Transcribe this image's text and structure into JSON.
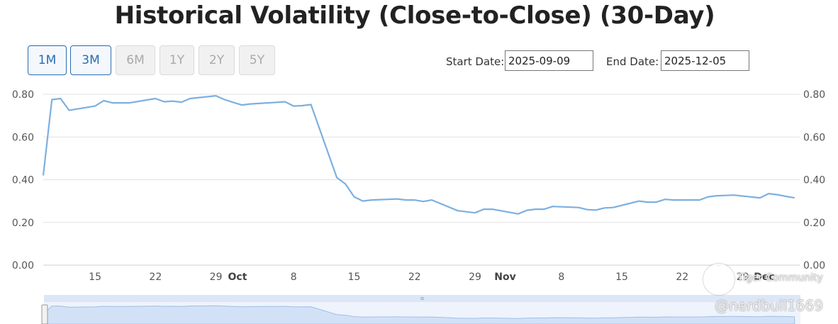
{
  "title": "Historical Volatility (Close-to-Close) (30-Day)",
  "range_buttons": [
    {
      "label": "1M",
      "state": "active"
    },
    {
      "label": "3M",
      "state": "active"
    },
    {
      "label": "6M",
      "state": "disabled"
    },
    {
      "label": "1Y",
      "state": "disabled"
    },
    {
      "label": "2Y",
      "state": "disabled"
    },
    {
      "label": "5Y",
      "state": "disabled"
    }
  ],
  "start_date": {
    "label": "Start Date:",
    "value": "2025-09-09"
  },
  "end_date": {
    "label": "End Date:",
    "value": "2025-12-05"
  },
  "watermark": {
    "brand": "Tiger Community",
    "handle": "@nerdbull1669"
  },
  "colors": {
    "line": "#7cb0e0",
    "grid": "#e2e2e2",
    "accent": "#2b6cb0",
    "navigator": "#dde8f8"
  },
  "chart_data": {
    "type": "line",
    "title": "Historical Volatility (Close-to-Close) (30-Day)",
    "xlabel": "",
    "ylabel": "",
    "ylim": [
      0,
      0.8
    ],
    "y_ticks": [
      "0.00",
      "0.20",
      "0.40",
      "0.60",
      "0.80"
    ],
    "x_ticks": [
      {
        "date": "2025-09-15",
        "label": "15",
        "bold": false
      },
      {
        "date": "2025-09-22",
        "label": "22",
        "bold": false
      },
      {
        "date": "2025-09-29",
        "label": "29",
        "bold": false
      },
      {
        "date": "2025-10-01",
        "label": "Oct",
        "bold": true
      },
      {
        "date": "2025-10-08",
        "label": "8",
        "bold": false
      },
      {
        "date": "2025-10-15",
        "label": "15",
        "bold": false
      },
      {
        "date": "2025-10-22",
        "label": "22",
        "bold": false
      },
      {
        "date": "2025-10-29",
        "label": "29",
        "bold": false
      },
      {
        "date": "2025-11-01",
        "label": "Nov",
        "bold": true
      },
      {
        "date": "2025-11-08",
        "label": "8",
        "bold": false
      },
      {
        "date": "2025-11-15",
        "label": "15",
        "bold": false
      },
      {
        "date": "2025-11-22",
        "label": "22",
        "bold": false
      },
      {
        "date": "2025-11-29",
        "label": "29",
        "bold": false
      },
      {
        "date": "2025-12-01",
        "label": "Dec",
        "bold": true
      }
    ],
    "grid": true,
    "series": [
      {
        "points": [
          [
            "2025-09-09",
            0.42
          ],
          [
            "2025-09-10",
            0.775
          ],
          [
            "2025-09-11",
            0.78
          ],
          [
            "2025-09-12",
            0.725
          ],
          [
            "2025-09-15",
            0.745
          ],
          [
            "2025-09-16",
            0.77
          ],
          [
            "2025-09-17",
            0.76
          ],
          [
            "2025-09-18",
            0.76
          ],
          [
            "2025-09-19",
            0.76
          ],
          [
            "2025-09-22",
            0.78
          ],
          [
            "2025-09-23",
            0.765
          ],
          [
            "2025-09-24",
            0.768
          ],
          [
            "2025-09-25",
            0.763
          ],
          [
            "2025-09-26",
            0.78
          ],
          [
            "2025-09-29",
            0.793
          ],
          [
            "2025-09-30",
            0.775
          ],
          [
            "2025-10-01",
            0.762
          ],
          [
            "2025-10-02",
            0.75
          ],
          [
            "2025-10-03",
            0.755
          ],
          [
            "2025-10-06",
            0.762
          ],
          [
            "2025-10-07",
            0.765
          ],
          [
            "2025-10-08",
            0.745
          ],
          [
            "2025-10-09",
            0.747
          ],
          [
            "2025-10-10",
            0.752
          ],
          [
            "2025-10-13",
            0.41
          ],
          [
            "2025-10-14",
            0.38
          ],
          [
            "2025-10-15",
            0.32
          ],
          [
            "2025-10-16",
            0.3
          ],
          [
            "2025-10-17",
            0.305
          ],
          [
            "2025-10-20",
            0.31
          ],
          [
            "2025-10-21",
            0.305
          ],
          [
            "2025-10-22",
            0.305
          ],
          [
            "2025-10-23",
            0.298
          ],
          [
            "2025-10-24",
            0.305
          ],
          [
            "2025-10-27",
            0.255
          ],
          [
            "2025-10-28",
            0.25
          ],
          [
            "2025-10-29",
            0.245
          ],
          [
            "2025-10-30",
            0.262
          ],
          [
            "2025-10-31",
            0.262
          ],
          [
            "2025-11-03",
            0.24
          ],
          [
            "2025-11-04",
            0.257
          ],
          [
            "2025-11-05",
            0.262
          ],
          [
            "2025-11-06",
            0.262
          ],
          [
            "2025-11-07",
            0.275
          ],
          [
            "2025-11-10",
            0.27
          ],
          [
            "2025-11-11",
            0.26
          ],
          [
            "2025-11-12",
            0.258
          ],
          [
            "2025-11-13",
            0.268
          ],
          [
            "2025-11-14",
            0.27
          ],
          [
            "2025-11-17",
            0.3
          ],
          [
            "2025-11-18",
            0.295
          ],
          [
            "2025-11-19",
            0.295
          ],
          [
            "2025-11-20",
            0.308
          ],
          [
            "2025-11-21",
            0.305
          ],
          [
            "2025-11-24",
            0.305
          ],
          [
            "2025-11-25",
            0.32
          ],
          [
            "2025-11-26",
            0.325
          ],
          [
            "2025-11-28",
            0.328
          ],
          [
            "2025-12-01",
            0.315
          ],
          [
            "2025-12-02",
            0.335
          ],
          [
            "2025-12-03",
            0.33
          ],
          [
            "2025-12-04",
            0.322
          ],
          [
            "2025-12-05",
            0.315
          ]
        ]
      }
    ]
  }
}
